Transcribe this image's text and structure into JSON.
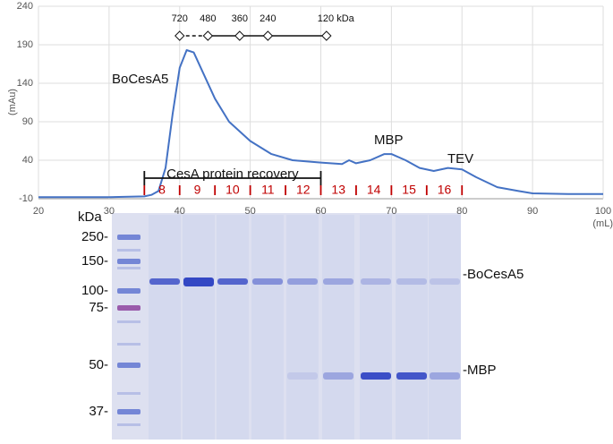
{
  "chart_data": {
    "type": "line",
    "xlabel": "(mL)",
    "ylabel": "(mAu)",
    "xlim": [
      20,
      100
    ],
    "xticks": [
      20,
      30,
      40,
      50,
      60,
      70,
      80,
      90,
      100
    ],
    "ylim": [
      -10,
      240
    ],
    "yticks": [
      -10,
      40,
      90,
      140,
      190,
      240
    ],
    "grid": true,
    "color": "#4472c4",
    "x": [
      20,
      30,
      35,
      36,
      37,
      38,
      39,
      40,
      41,
      42,
      43,
      45,
      47,
      50,
      53,
      56,
      60,
      63,
      64,
      65,
      67,
      69,
      70,
      72,
      74,
      76,
      78,
      80,
      82,
      85,
      88,
      90,
      95,
      100
    ],
    "values": [
      -8,
      -8,
      -7,
      -5,
      0,
      30,
      100,
      160,
      183,
      180,
      160,
      120,
      90,
      65,
      48,
      40,
      37,
      35,
      40,
      36,
      40,
      48,
      48,
      40,
      30,
      26,
      30,
      28,
      18,
      5,
      0,
      -3,
      -4,
      -4
    ],
    "annotations": [
      "BoCesA5",
      "MBP",
      "TEV"
    ],
    "standards": [
      {
        "label": "720",
        "x": 40
      },
      {
        "label": "480",
        "x": 44
      },
      {
        "label": "360",
        "x": 48.5
      },
      {
        "label": "240",
        "x": 52.5
      },
      {
        "label": "120 kDa",
        "x": 60.8
      }
    ],
    "recovery": {
      "label": "CesA protein recovery",
      "xlim": [
        35,
        60
      ]
    },
    "fractions": {
      "labels": [
        "8",
        "9",
        "10",
        "11",
        "12",
        "13",
        "14",
        "15",
        "16"
      ],
      "boundaries": [
        35,
        40,
        45,
        50,
        55,
        60,
        65,
        70,
        75,
        80
      ]
    }
  },
  "gel": {
    "unit": "kDa",
    "markers": [
      "250-",
      "150-",
      "100-",
      "75-",
      "50-",
      "37-"
    ],
    "bands": [
      "-BoCesA5",
      "-MBP"
    ]
  }
}
